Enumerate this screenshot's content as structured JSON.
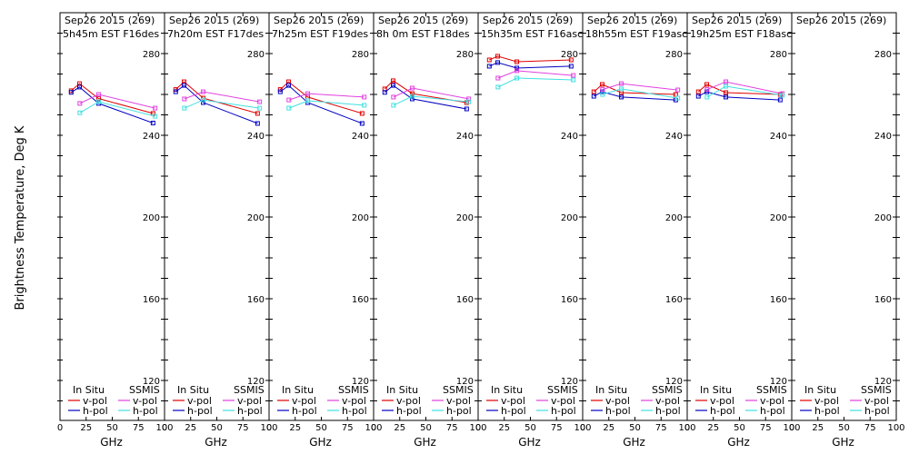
{
  "chart_data": {
    "type": "line",
    "ylabel": "Brightness Temperature, Deg K",
    "xlabel": "GHz",
    "xlim": [
      0,
      100
    ],
    "ylim": [
      100,
      295
    ],
    "xticks": [
      0,
      25,
      50,
      75,
      100
    ],
    "yticks": [
      120,
      160,
      200,
      240,
      280
    ],
    "legend": {
      "position": "bottom",
      "group_titles": [
        "In Situ",
        "SSMIS"
      ],
      "entries": [
        {
          "name": "v-pol",
          "group": "In Situ",
          "color": "#e00000"
        },
        {
          "name": "h-pol",
          "group": "In Situ",
          "color": "#0000c0"
        },
        {
          "name": "v-pol",
          "group": "SSMIS",
          "color": "#e040e0"
        },
        {
          "name": "h-pol",
          "group": "SSMIS",
          "color": "#40e0e0"
        }
      ]
    },
    "panels": [
      {
        "title_line1": "Sep26 2015 (269)",
        "title_line2": "5h45m EST F16des",
        "series": [
          {
            "name": "In Situ v-pol",
            "color": "#e00000",
            "x": [
              10.7,
              18.7,
              37,
              89
            ],
            "y": [
              261.8,
              265.3,
              258,
              250.7
            ]
          },
          {
            "name": "In Situ h-pol",
            "color": "#0000c0",
            "x": [
              10.7,
              18.7,
              37,
              89
            ],
            "y": [
              261,
              263.6,
              255.6,
              246
            ]
          },
          {
            "name": "SSMIS v-pol",
            "color": "#e040e0",
            "x": [
              19,
              37,
              91
            ],
            "y": [
              255.6,
              260,
              253.3
            ]
          },
          {
            "name": "SSMIS h-pol",
            "color": "#40e0e0",
            "x": [
              19,
              37,
              91
            ],
            "y": [
              251,
              256.4,
              249.3
            ]
          }
        ]
      },
      {
        "title_line1": "Sep26 2015 (269)",
        "title_line2": "7h20m EST F17des",
        "series": [
          {
            "name": "In Situ v-pol",
            "color": "#e00000",
            "x": [
              10.7,
              18.7,
              37,
              89
            ],
            "y": [
              262.4,
              266.2,
              258.2,
              250.7
            ]
          },
          {
            "name": "In Situ h-pol",
            "color": "#0000c0",
            "x": [
              10.7,
              18.7,
              37,
              89
            ],
            "y": [
              261.3,
              264.4,
              256,
              245.8
            ]
          },
          {
            "name": "SSMIS v-pol",
            "color": "#e040e0",
            "x": [
              19,
              37,
              91
            ],
            "y": [
              257.8,
              261.3,
              256.4
            ]
          },
          {
            "name": "SSMIS h-pol",
            "color": "#40e0e0",
            "x": [
              19,
              37,
              91
            ],
            "y": [
              253.3,
              257.3,
              253.3
            ]
          }
        ]
      },
      {
        "title_line1": "Sep26 2015 (269)",
        "title_line2": "7h25m EST F19des",
        "series": [
          {
            "name": "In Situ v-pol",
            "color": "#e00000",
            "x": [
              10.7,
              18.7,
              37,
              89
            ],
            "y": [
              262.4,
              266.2,
              258.7,
              250.7
            ]
          },
          {
            "name": "In Situ h-pol",
            "color": "#0000c0",
            "x": [
              10.7,
              18.7,
              37,
              89
            ],
            "y": [
              261.3,
              264.4,
              256,
              245.8
            ]
          },
          {
            "name": "SSMIS v-pol",
            "color": "#e040e0",
            "x": [
              19,
              37,
              91
            ],
            "y": [
              257.3,
              260.4,
              258.7
            ]
          },
          {
            "name": "SSMIS h-pol",
            "color": "#40e0e0",
            "x": [
              19,
              37,
              91
            ],
            "y": [
              253.3,
              256.9,
              254.7
            ]
          }
        ]
      },
      {
        "title_line1": "Sep26 2015 (269)",
        "title_line2": "8h 0m EST F18des",
        "series": [
          {
            "name": "In Situ v-pol",
            "color": "#e00000",
            "x": [
              10.7,
              18.7,
              37,
              89
            ],
            "y": [
              262.7,
              266.7,
              260.4,
              256
            ]
          },
          {
            "name": "In Situ h-pol",
            "color": "#0000c0",
            "x": [
              10.7,
              18.7,
              37,
              89
            ],
            "y": [
              261,
              264.4,
              257.8,
              252.9
            ]
          },
          {
            "name": "SSMIS v-pol",
            "color": "#e040e0",
            "x": [
              19,
              37,
              91
            ],
            "y": [
              258.7,
              263.1,
              257.8
            ]
          },
          {
            "name": "SSMIS h-pol",
            "color": "#40e0e0",
            "x": [
              19,
              37,
              91
            ],
            "y": [
              254.7,
              259.1,
              256.4
            ]
          }
        ]
      },
      {
        "title_line1": "Sep26 2015 (269)",
        "title_line2": "15h35m EST F16asc",
        "series": [
          {
            "name": "In Situ v-pol",
            "color": "#e00000",
            "x": [
              10.7,
              18.7,
              37,
              89
            ],
            "y": [
              276.9,
              278.7,
              276,
              276.9
            ]
          },
          {
            "name": "In Situ h-pol",
            "color": "#0000c0",
            "x": [
              10.7,
              18.7,
              37,
              89
            ],
            "y": [
              273.8,
              275.6,
              272.9,
              273.8
            ]
          },
          {
            "name": "SSMIS v-pol",
            "color": "#e040e0",
            "x": [
              19,
              37,
              91
            ],
            "y": [
              268,
              271.6,
              269.3
            ]
          },
          {
            "name": "SSMIS h-pol",
            "color": "#40e0e0",
            "x": [
              19,
              37,
              91
            ],
            "y": [
              263.6,
              268,
              267.1
            ]
          }
        ]
      },
      {
        "title_line1": "Sep26 2015 (269)",
        "title_line2": "18h55m EST F19asc",
        "series": [
          {
            "name": "In Situ v-pol",
            "color": "#e00000",
            "x": [
              10.7,
              18.7,
              37,
              89
            ],
            "y": [
              261.3,
              264.9,
              260.9,
              260
            ]
          },
          {
            "name": "In Situ h-pol",
            "color": "#0000c0",
            "x": [
              10.7,
              18.7,
              37,
              89
            ],
            "y": [
              259.1,
              261.3,
              258.7,
              257.3
            ]
          },
          {
            "name": "SSMIS v-pol",
            "color": "#e040e0",
            "x": [
              19,
              37,
              91
            ],
            "y": [
              262.4,
              265.3,
              262.2
            ]
          },
          {
            "name": "SSMIS h-pol",
            "color": "#40e0e0",
            "x": [
              19,
              37,
              91
            ],
            "y": [
              260,
              262.7,
              258.2
            ]
          }
        ]
      },
      {
        "title_line1": "Sep26 2015 (269)",
        "title_line2": "19h25m EST F18asc",
        "series": [
          {
            "name": "In Situ v-pol",
            "color": "#e00000",
            "x": [
              10.7,
              18.7,
              37,
              89
            ],
            "y": [
              261.3,
              264.9,
              260.9,
              260
            ]
          },
          {
            "name": "In Situ h-pol",
            "color": "#0000c0",
            "x": [
              10.7,
              18.7,
              37,
              89
            ],
            "y": [
              259.1,
              261.3,
              258.7,
              257.3
            ]
          },
          {
            "name": "SSMIS v-pol",
            "color": "#e040e0",
            "x": [
              19,
              37,
              91
            ],
            "y": [
              262.4,
              266.2,
              260.4
            ]
          },
          {
            "name": "SSMIS h-pol",
            "color": "#40e0e0",
            "x": [
              19,
              37,
              91
            ],
            "y": [
              258.7,
              264,
              259.6
            ]
          }
        ]
      },
      {
        "title_line1": "Sep26 2015 (269)",
        "title_line2": "",
        "series": []
      }
    ]
  }
}
